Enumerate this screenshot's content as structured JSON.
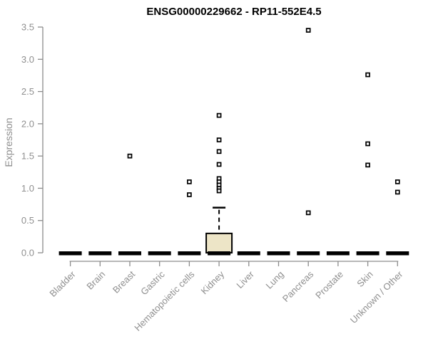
{
  "colors": {
    "background": "#ffffff",
    "title": "#000000",
    "axis": "#8c8c8c",
    "tick_label": "#8f8f8f",
    "box_fill": "#ede5c7",
    "box_stroke": "#000000",
    "point_stroke": "#000000",
    "point_fill": "#ffffff"
  },
  "chart_data": {
    "type": "boxplot",
    "title": "ENSG00000229662 - RP11-552E4.5",
    "ylabel": "Expression",
    "xlabel": "",
    "ylim": [
      0,
      3.5
    ],
    "yticks": [
      0,
      0.5,
      1,
      1.5,
      2,
      2.5,
      3,
      3.5
    ],
    "grid": false,
    "legend": "none",
    "categories": [
      "Bladder",
      "Brain",
      "Breast",
      "Gastric",
      "Hematopoietic cells",
      "Kidney",
      "Liver",
      "Lung",
      "Pancreas",
      "Prostate",
      "Skin",
      "Unknown / Other"
    ],
    "boxes": [
      {
        "label": "Bladder",
        "whisker_low": 0,
        "q1": 0,
        "median": 0,
        "q3": 0,
        "whisker_high": 0,
        "outliers": []
      },
      {
        "label": "Brain",
        "whisker_low": 0,
        "q1": 0,
        "median": 0,
        "q3": 0,
        "whisker_high": 0,
        "outliers": []
      },
      {
        "label": "Breast",
        "whisker_low": 0,
        "q1": 0,
        "median": 0,
        "q3": 0,
        "whisker_high": 0,
        "outliers": [
          1.5
        ]
      },
      {
        "label": "Gastric",
        "whisker_low": 0,
        "q1": 0,
        "median": 0,
        "q3": 0,
        "whisker_high": 0,
        "outliers": []
      },
      {
        "label": "Hematopoietic cells",
        "whisker_low": 0,
        "q1": 0,
        "median": 0,
        "q3": 0,
        "whisker_high": 0,
        "outliers": [
          1.1,
          0.9
        ]
      },
      {
        "label": "Kidney",
        "whisker_low": 0,
        "q1": 0,
        "median": 0,
        "q3": 0.3,
        "whisker_high": 0.7,
        "outliers": [
          2.13,
          1.75,
          1.57,
          1.37,
          1.15,
          1.1,
          1.05,
          1.0,
          0.96
        ]
      },
      {
        "label": "Liver",
        "whisker_low": 0,
        "q1": 0,
        "median": 0,
        "q3": 0,
        "whisker_high": 0,
        "outliers": []
      },
      {
        "label": "Lung",
        "whisker_low": 0,
        "q1": 0,
        "median": 0,
        "q3": 0,
        "whisker_high": 0,
        "outliers": []
      },
      {
        "label": "Pancreas",
        "whisker_low": 0,
        "q1": 0,
        "median": 0,
        "q3": 0,
        "whisker_high": 0,
        "outliers": [
          3.45,
          0.62
        ]
      },
      {
        "label": "Prostate",
        "whisker_low": 0,
        "q1": 0,
        "median": 0,
        "q3": 0,
        "whisker_high": 0,
        "outliers": []
      },
      {
        "label": "Skin",
        "whisker_low": 0,
        "q1": 0,
        "median": 0,
        "q3": 0,
        "whisker_high": 0,
        "outliers": [
          2.76,
          1.69,
          1.36
        ]
      },
      {
        "label": "Unknown / Other",
        "whisker_low": 0,
        "q1": 0,
        "median": 0,
        "q3": 0,
        "whisker_high": 0,
        "outliers": [
          1.1,
          0.94
        ]
      }
    ]
  }
}
